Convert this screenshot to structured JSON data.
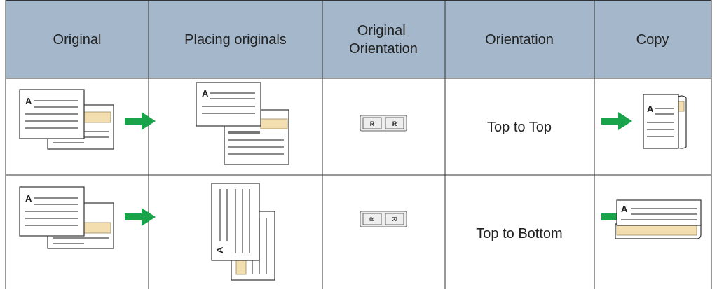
{
  "header": {
    "columns": [
      "Original",
      "Placing originals",
      "Original Orientation",
      "Orientation",
      "Copy"
    ]
  },
  "rows": [
    {
      "orientation": "Top to Top"
    },
    {
      "orientation": "Top to Bottom"
    }
  ],
  "illustration_letter": "A",
  "orientation_icon_letter": "R"
}
